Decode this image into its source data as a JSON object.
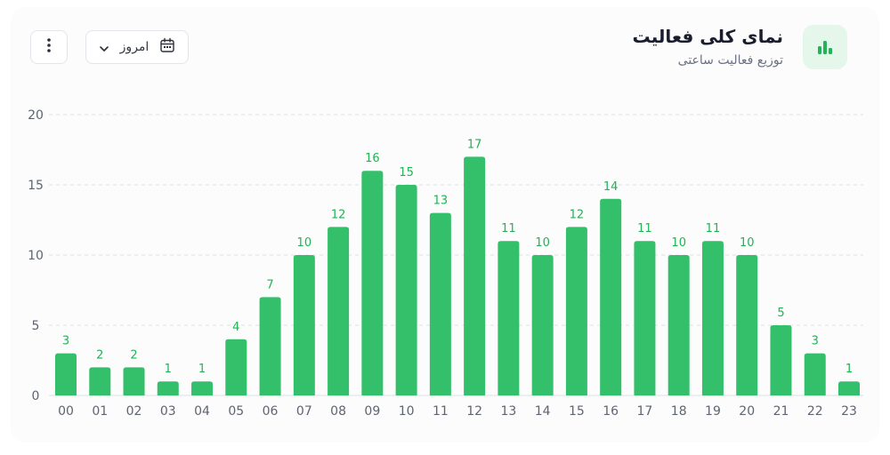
{
  "header": {
    "title": "نمای کلی فعالیت",
    "subtitle": "توزیع فعالیت ساعتی",
    "icon": "bar-chart-icon"
  },
  "controls": {
    "date_filter_label": "امروز",
    "date_filter_icon": "calendar-icon",
    "chevron_icon": "chevron-down-icon",
    "menu_icon": "more-vertical-icon"
  },
  "colors": {
    "bar": "#34c06a",
    "label": "#20b355",
    "grid": "#dcdfe4",
    "axis_text": "#5f6472"
  },
  "chart_data": {
    "type": "bar",
    "categories": [
      "00",
      "01",
      "02",
      "03",
      "04",
      "05",
      "06",
      "07",
      "08",
      "09",
      "10",
      "11",
      "12",
      "13",
      "14",
      "15",
      "16",
      "17",
      "18",
      "19",
      "20",
      "21",
      "22",
      "23"
    ],
    "values": [
      3,
      2,
      2,
      1,
      1,
      4,
      7,
      10,
      12,
      16,
      15,
      13,
      17,
      11,
      10,
      12,
      14,
      11,
      10,
      11,
      10,
      5,
      3,
      1
    ],
    "ylim": [
      0,
      20
    ],
    "yticks": [
      0,
      5,
      10,
      15,
      20
    ],
    "grid": true,
    "data_labels": true
  }
}
